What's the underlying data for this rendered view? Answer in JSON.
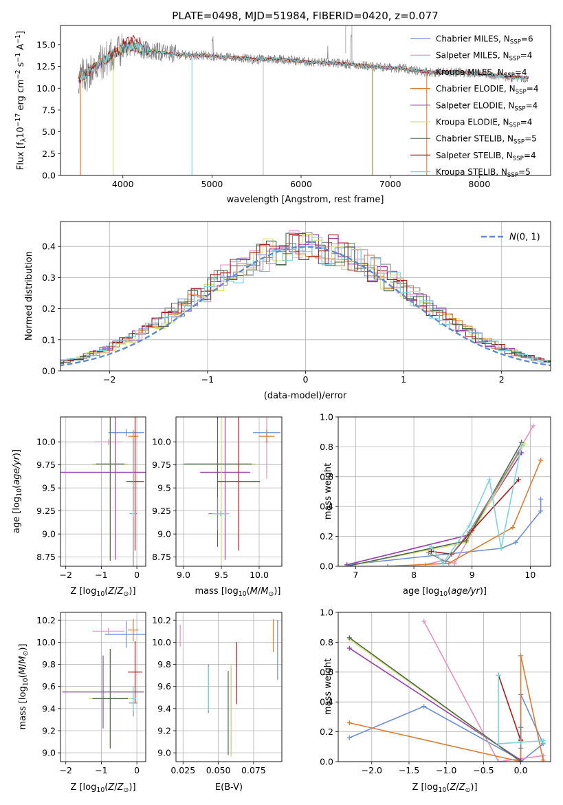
{
  "figure": {
    "title": "PLATE=0498, MJD=51984, FIBERID=0420, z=0.077"
  },
  "chart_data": [
    {
      "id": "spectrum",
      "type": "line",
      "title": "PLATE=0498, MJD=51984, FIBERID=0420, z=0.077",
      "xlabel": "wavelength [Angstrom, rest frame]",
      "ylabel": "Flux [f_λ10^-17 erg cm^-2 s^-1 A^-1]",
      "xlim": [
        3300,
        8800
      ],
      "ylim": [
        0,
        17.2
      ],
      "xticks": [
        4000,
        5000,
        6000,
        7000,
        8000
      ],
      "yticks": [
        0.0,
        2.5,
        5.0,
        7.5,
        10.0,
        12.5,
        15.0
      ],
      "legend_position": "upper-right",
      "series": [
        {
          "name": "Chabrier MILES, N_SSP=6",
          "color": "#6a8fd8"
        },
        {
          "name": "Salpeter MILES, N_SSP=4",
          "color": "#e78fc0"
        },
        {
          "name": "Kroupa MILES, N_SSP=4",
          "color": "#888888"
        },
        {
          "name": "Chabrier ELODIE, N_SSP=4",
          "color": "#e07a2c"
        },
        {
          "name": "Salpeter ELODIE, N_SSP=4",
          "color": "#9a3fb5"
        },
        {
          "name": "Kroupa ELODIE, N_SSP=4",
          "color": "#d8e070"
        },
        {
          "name": "Chabrier STELIB, N_SSP=5",
          "color": "#4a6a4a"
        },
        {
          "name": "Salpeter STELIB, N_SSP=4",
          "color": "#b01818"
        },
        {
          "name": "Kroupa STELIB, N_SSP=5",
          "color": "#78d4e0"
        }
      ],
      "data_envelope": {
        "x": [
          3500,
          3700,
          3900,
          4000,
          4100,
          4300,
          4500,
          4700,
          4900,
          5100,
          5300,
          5500,
          5700,
          5900,
          6100,
          6300,
          6500,
          6700,
          6900,
          7100,
          7300,
          7500,
          7700,
          7900,
          8100,
          8300,
          8500
        ],
        "y": [
          11.0,
          12.5,
          14.0,
          14.5,
          14.8,
          14.3,
          14.0,
          13.8,
          13.8,
          13.6,
          13.5,
          13.3,
          13.4,
          13.2,
          13.0,
          12.9,
          12.8,
          12.6,
          12.4,
          12.3,
          12.0,
          11.8,
          11.9,
          11.7,
          11.6,
          11.3,
          11.2
        ]
      }
    },
    {
      "id": "residuals",
      "type": "histogram",
      "xlabel": "(data-model)/error",
      "ylabel": "Normed distribution",
      "xlim": [
        -2.5,
        2.5
      ],
      "ylim": [
        0,
        0.48
      ],
      "xticks": [
        -2,
        -1,
        0,
        1,
        2
      ],
      "yticks": [
        0.0,
        0.1,
        0.2,
        0.3,
        0.4
      ],
      "legend": "N(0,1)",
      "legend_position": "upper-right",
      "reference_curve": "normal",
      "reference_color": "#5b8bd6"
    },
    {
      "id": "age-vs-Z",
      "type": "errorbar",
      "xlabel": "Z [log10(Z/Z☉)]",
      "ylabel": "age  [log10(age/yr)]",
      "xlim": [
        -2.15,
        0.25
      ],
      "ylim": [
        8.65,
        10.27
      ],
      "xticks": [
        -2,
        -1,
        0
      ],
      "yticks": [
        8.75,
        9.0,
        9.25,
        9.5,
        9.75,
        10.0
      ],
      "points": [
        {
          "color": "#6a8fd8",
          "x": -0.3,
          "y": 10.1,
          "xerr": 0.5,
          "yerr": 0.04
        },
        {
          "color": "#e78fc0",
          "x": -0.8,
          "y": 10.0,
          "xerr": 0.4,
          "yerr": 0.03
        },
        {
          "color": "#e07a2c",
          "x": -0.1,
          "y": 10.06,
          "xerr": 0.15,
          "yerr": 0.07
        },
        {
          "color": "#9a3fb5",
          "x": -0.6,
          "y": 9.67,
          "xerr": 1.55,
          "yerr": 0.95
        },
        {
          "color": "#d8e070",
          "x": -0.75,
          "y": 9.76,
          "xerr": 0.5,
          "yerr": 1.05
        },
        {
          "color": "#4a6a4a",
          "x": -0.75,
          "y": 9.76,
          "xerr": 0.4,
          "yerr": 1.05
        },
        {
          "color": "#b01818",
          "x": -0.05,
          "y": 9.57,
          "xerr": 0.25,
          "yerr": 0.75
        },
        {
          "color": "#888888",
          "x": -0.1,
          "y": 9.22,
          "xerr": 0.1,
          "yerr": 0.8
        },
        {
          "color": "#78d4e0",
          "x": -0.1,
          "y": 9.22,
          "xerr": 0.07,
          "yerr": 0.03
        }
      ]
    },
    {
      "id": "age-vs-mass",
      "type": "errorbar",
      "xlabel": "mass [log10(M/M☉)]",
      "ylabel": "",
      "xlim": [
        8.9,
        10.3
      ],
      "ylim": [
        8.65,
        10.27
      ],
      "xticks": [
        9.0,
        9.5,
        10.0
      ],
      "yticks": [
        8.75,
        9.0,
        9.25,
        9.5,
        9.75,
        10.0
      ],
      "points": [
        {
          "color": "#6a8fd8",
          "x": 10.1,
          "y": 10.1,
          "xerr": 0.18,
          "yerr": 0.04
        },
        {
          "color": "#e78fc0",
          "x": 10.1,
          "y": 10.0,
          "xerr": 0.03,
          "yerr": 0.4
        },
        {
          "color": "#e07a2c",
          "x": 10.1,
          "y": 10.06,
          "xerr": 0.1,
          "yerr": 0.07
        },
        {
          "color": "#9a3fb5",
          "x": 9.55,
          "y": 9.67,
          "xerr": 0.33,
          "yerr": 0.95
        },
        {
          "color": "#d8e070",
          "x": 9.5,
          "y": 9.76,
          "xerr": 0.45,
          "yerr": 1.05
        },
        {
          "color": "#4a6a4a",
          "x": 9.45,
          "y": 9.76,
          "xerr": 0.45,
          "yerr": 0.9
        },
        {
          "color": "#b01818",
          "x": 9.73,
          "y": 9.57,
          "xerr": 0.28,
          "yerr": 0.75
        },
        {
          "color": "#888888",
          "x": 9.45,
          "y": 9.22,
          "xerr": 0.12,
          "yerr": 0.18
        },
        {
          "color": "#78d4e0",
          "x": 9.49,
          "y": 9.22,
          "xerr": 0.11,
          "yerr": 0.03
        }
      ]
    },
    {
      "id": "massweight-vs-age",
      "type": "line",
      "xlabel": "age  [log10(age/yr)]",
      "ylabel": "mass weight",
      "xlim": [
        6.7,
        10.35
      ],
      "ylim": [
        0,
        1.0
      ],
      "xticks": [
        7,
        8,
        9,
        10
      ],
      "yticks": [
        0.0,
        0.2,
        0.4,
        0.6,
        0.8,
        1.0
      ],
      "series": [
        {
          "color": "#6a8fd8",
          "x": [
            6.85,
            9.5,
            9.75,
            10.18,
            10.18
          ],
          "y": [
            0.01,
            0.12,
            0.16,
            0.37,
            0.45
          ]
        },
        {
          "color": "#e78fc0",
          "x": [
            8.2,
            8.5,
            8.7,
            10.05
          ],
          "y": [
            0.01,
            0.04,
            0.02,
            0.94
          ]
        },
        {
          "color": "#e07a2c",
          "x": [
            7.55,
            8.6,
            9.7,
            10.18
          ],
          "y": [
            0.0,
            0.02,
            0.26,
            0.71
          ]
        },
        {
          "color": "#9a3fb5",
          "x": [
            6.85,
            8.95,
            9.85
          ],
          "y": [
            0.01,
            0.21,
            0.76
          ]
        },
        {
          "color": "#d8e070",
          "x": [
            6.85,
            8.9,
            9.9
          ],
          "y": [
            0.0,
            0.16,
            0.82
          ]
        },
        {
          "color": "#4a6a4a",
          "x": [
            6.85,
            8.9,
            9.85
          ],
          "y": [
            0.0,
            0.17,
            0.83
          ]
        },
        {
          "color": "#b01818",
          "x": [
            8.3,
            8.65,
            9.0,
            9.8
          ],
          "y": [
            0.1,
            0.08,
            0.24,
            0.58
          ]
        },
        {
          "color": "#888888",
          "x": [
            8.25,
            8.55,
            8.95,
            9.8
          ],
          "y": [
            0.09,
            0.03,
            0.23,
            0.76
          ]
        },
        {
          "color": "#78d4e0",
          "x": [
            8.3,
            8.5,
            8.95,
            9.3,
            9.5,
            9.85
          ],
          "y": [
            0.13,
            0.02,
            0.27,
            0.58,
            0.12,
            0.81
          ]
        }
      ]
    },
    {
      "id": "mass-vs-Z",
      "type": "errorbar",
      "xlabel": "Z [log10(Z/Z☉)]",
      "ylabel": "mass [log10(M/M☉)]",
      "xlim": [
        -2.15,
        0.25
      ],
      "ylim": [
        8.92,
        10.27
      ],
      "xticks": [
        -2,
        -1,
        0
      ],
      "yticks": [
        9.0,
        9.2,
        9.4,
        9.6,
        9.8,
        10.0,
        10.2
      ],
      "points": [
        {
          "color": "#6a8fd8",
          "x": -0.3,
          "y": 10.07,
          "xerr": 0.6,
          "yerr": 0.12
        },
        {
          "color": "#e78fc0",
          "x": -0.8,
          "y": 10.1,
          "xerr": 0.45,
          "yerr": 0.03
        },
        {
          "color": "#e07a2c",
          "x": -0.1,
          "y": 10.11,
          "xerr": 0.15,
          "yerr": 0.1
        },
        {
          "color": "#9a3fb5",
          "x": -0.95,
          "y": 9.55,
          "xerr": 1.15,
          "yerr": 0.33
        },
        {
          "color": "#d8e070",
          "x": -0.75,
          "y": 9.49,
          "xerr": 0.6,
          "yerr": 0.45
        },
        {
          "color": "#4a6a4a",
          "x": -0.75,
          "y": 9.49,
          "xerr": 0.5,
          "yerr": 0.45
        },
        {
          "color": "#b01818",
          "x": -0.05,
          "y": 9.73,
          "xerr": 0.2,
          "yerr": 0.28
        },
        {
          "color": "#888888",
          "x": -0.1,
          "y": 9.45,
          "xerr": 0.12,
          "yerr": 0.12
        },
        {
          "color": "#78d4e0",
          "x": -0.1,
          "y": 9.49,
          "xerr": 0.07,
          "yerr": 0.11
        }
      ]
    },
    {
      "id": "mass-vs-ebv",
      "type": "errorbar",
      "xlabel": "E(B-V)",
      "ylabel": "",
      "xlim": [
        0.02,
        0.095
      ],
      "ylim": [
        8.92,
        10.27
      ],
      "xticks": [
        0.025,
        0.05,
        0.075
      ],
      "yticks": [
        9.0,
        9.2,
        9.4,
        9.6,
        9.8,
        10.0,
        10.2
      ],
      "points": [
        {
          "color": "#6a8fd8",
          "x": 0.092,
          "y": 9.93,
          "xerr": 0.0,
          "yerr": 0.27
        },
        {
          "color": "#e78fc0",
          "x": 0.023,
          "y": 10.06,
          "xerr": 0.0,
          "yerr": 0.1
        },
        {
          "color": "#e07a2c",
          "x": 0.089,
          "y": 10.06,
          "xerr": 0.0,
          "yerr": 0.15
        },
        {
          "color": "#9a3fb5",
          "x": 0.059,
          "y": 9.38,
          "xerr": 0.0,
          "yerr": 0.4
        },
        {
          "color": "#d8e070",
          "x": 0.059,
          "y": 9.38,
          "xerr": 0.0,
          "yerr": 0.42
        },
        {
          "color": "#4a6a4a",
          "x": 0.057,
          "y": 9.36,
          "xerr": 0.0,
          "yerr": 0.38
        },
        {
          "color": "#b01818",
          "x": 0.063,
          "y": 9.72,
          "xerr": 0.0,
          "yerr": 0.28
        },
        {
          "color": "#888888",
          "x": 0.043,
          "y": 9.58,
          "xerr": 0.0,
          "yerr": 0.22
        },
        {
          "color": "#78d4e0",
          "x": 0.043,
          "y": 9.58,
          "xerr": 0.0,
          "yerr": 0.2
        }
      ]
    },
    {
      "id": "massweight-vs-Z",
      "type": "line",
      "xlabel": "Z [log10(Z/Z☉)]",
      "ylabel": "mass weight",
      "xlim": [
        -2.45,
        0.4
      ],
      "ylim": [
        0,
        1.0
      ],
      "xticks": [
        -2.0,
        -1.5,
        -1.0,
        -0.5,
        0.0
      ],
      "yticks": [
        0.0,
        0.2,
        0.4,
        0.6,
        0.8,
        1.0
      ],
      "series": [
        {
          "color": "#6a8fd8",
          "x": [
            -2.3,
            -1.3,
            0.0,
            0.0,
            0.3,
            0.0
          ],
          "y": [
            0.16,
            0.37,
            0.01,
            0.45,
            0.12,
            0.0
          ]
        },
        {
          "color": "#e78fc0",
          "x": [
            -1.3,
            -0.3,
            0.3,
            0.3
          ],
          "y": [
            0.94,
            0.0,
            0.04,
            0.01
          ]
        },
        {
          "color": "#e07a2c",
          "x": [
            -2.3,
            0.0,
            0.0,
            0.3
          ],
          "y": [
            0.26,
            0.0,
            0.71,
            0.01
          ]
        },
        {
          "color": "#9a3fb5",
          "x": [
            -2.3,
            0.0
          ],
          "y": [
            0.76,
            0.01
          ]
        },
        {
          "color": "#d8e070",
          "x": [
            -2.3,
            0.0
          ],
          "y": [
            0.82,
            0.0
          ]
        },
        {
          "color": "#4a6a4a",
          "x": [
            -2.3,
            0.0
          ],
          "y": [
            0.83,
            0.0
          ]
        },
        {
          "color": "#b01818",
          "x": [
            -0.3,
            0.0,
            0.0
          ],
          "y": [
            0.58,
            0.14,
            0.23
          ]
        },
        {
          "color": "#888888",
          "x": [
            0.0,
            0.0,
            0.0
          ],
          "y": [
            0.23,
            0.09,
            0.15
          ]
        },
        {
          "color": "#78d4e0",
          "x": [
            -0.3,
            -0.3,
            0.0,
            0.3,
            0.3
          ],
          "y": [
            0.58,
            0.12,
            0.13,
            0.14,
            0.13
          ]
        }
      ]
    }
  ]
}
